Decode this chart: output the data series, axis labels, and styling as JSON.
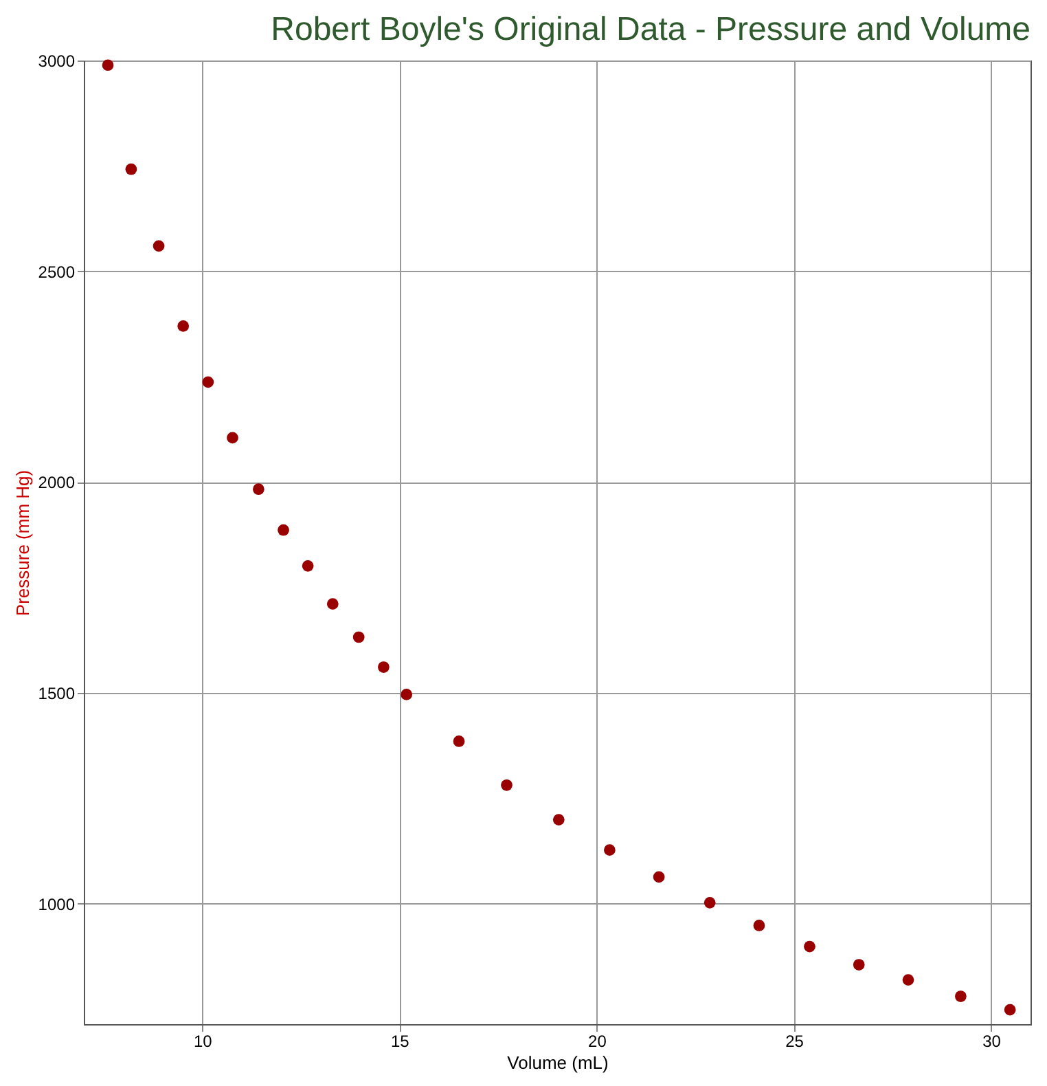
{
  "chart_data": {
    "type": "scatter",
    "title": "Robert Boyle's Original Data - Pressure and Volume",
    "xlabel": "Volume (mL)",
    "ylabel": "Pressure (mm Hg)",
    "x": [
      7.61,
      8.2,
      8.9,
      9.52,
      10.15,
      10.77,
      11.43,
      12.06,
      12.68,
      13.31,
      13.97,
      14.6,
      15.18,
      16.51,
      17.72,
      19.04,
      20.33,
      21.58,
      22.87,
      24.12,
      25.4,
      26.65,
      27.9,
      29.23,
      30.48
    ],
    "series": [
      {
        "color": "#990000",
        "values": [
          2989,
          2742,
          2560,
          2370,
          2237,
          2105,
          1983,
          1886,
          1801,
          1711,
          1632,
          1561,
          1496,
          1385,
          1281,
          1199,
          1127,
          1063,
          1002,
          948,
          898,
          855,
          819,
          780,
          748
        ]
      }
    ],
    "xlim": [
      7,
      31
    ],
    "xticks": [
      10,
      15,
      20,
      25,
      30
    ],
    "ylim": [
      714,
      3000
    ],
    "yticks": [
      1000,
      1500,
      2000,
      2500,
      3000
    ],
    "grid": true,
    "marker": "circle"
  }
}
